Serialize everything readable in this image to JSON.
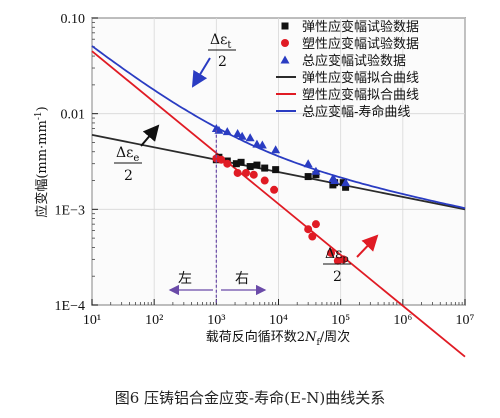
{
  "caption": "图6   压铸铝合金应变-寿命(E-N)曲线关系",
  "chart_data": {
    "type": "scatter",
    "xscale": "log",
    "yscale": "log",
    "xlim": [
      10,
      10000000
    ],
    "ylim": [
      0.0001,
      0.1
    ],
    "xlabel": "载荷反向循环数2Nf/周次",
    "ylabel": "应变幅(mm·mm⁻¹)",
    "x_tick_labels": [
      "10¹",
      "10²",
      "10³",
      "10⁴",
      "10⁵",
      "10⁶",
      "10⁷"
    ],
    "y_tick_labels": [
      "0.10",
      "0.01",
      "1E−3",
      "1E−4"
    ],
    "x_ticks": [
      10,
      100,
      1000,
      10000,
      100000,
      1000000,
      10000000
    ],
    "y_ticks": [
      0.1,
      0.01,
      0.001,
      0.0001
    ],
    "legend_position": "top-right",
    "series": [
      {
        "name": "弹性应变幅试验数据",
        "kind": "scatter",
        "marker": "square",
        "color": "#111111",
        "points": [
          [
            1000,
            0.0033
          ],
          [
            1100,
            0.0035
          ],
          [
            1500,
            0.0032
          ],
          [
            2100,
            0.003
          ],
          [
            2500,
            0.0031
          ],
          [
            3500,
            0.0028
          ],
          [
            4500,
            0.0029
          ],
          [
            6000,
            0.0027
          ],
          [
            9000,
            0.0026
          ],
          [
            30000,
            0.0022
          ],
          [
            40000,
            0.0023
          ],
          [
            75000,
            0.0018
          ],
          [
            80000,
            0.0019
          ],
          [
            110000,
            0.0019
          ],
          [
            120000,
            0.0017
          ]
        ]
      },
      {
        "name": "塑性应变幅试验数据",
        "kind": "scatter",
        "marker": "circle",
        "color": "#e01b24",
        "points": [
          [
            1000,
            0.0034
          ],
          [
            1200,
            0.0033
          ],
          [
            1500,
            0.003
          ],
          [
            2200,
            0.0024
          ],
          [
            3000,
            0.0024
          ],
          [
            4000,
            0.0023
          ],
          [
            6000,
            0.002
          ],
          [
            8500,
            0.0016
          ],
          [
            30000,
            0.00062
          ],
          [
            35000,
            0.00052
          ],
          [
            40000,
            0.0007
          ],
          [
            70000,
            0.00035
          ],
          [
            90000,
            0.00029
          ],
          [
            110000,
            0.0003
          ]
        ]
      },
      {
        "name": "总应变幅试验数据",
        "kind": "scatter",
        "marker": "triangle",
        "color": "#2a3cc2",
        "points": [
          [
            1000,
            0.007
          ],
          [
            1100,
            0.0067
          ],
          [
            1500,
            0.0065
          ],
          [
            2200,
            0.0062
          ],
          [
            2600,
            0.0058
          ],
          [
            3500,
            0.0056
          ],
          [
            4500,
            0.0048
          ],
          [
            5500,
            0.0047
          ],
          [
            9000,
            0.0042
          ],
          [
            30000,
            0.003
          ],
          [
            40000,
            0.0025
          ],
          [
            75000,
            0.0021
          ],
          [
            80000,
            0.002
          ],
          [
            120000,
            0.0019
          ]
        ]
      },
      {
        "name": "弹性应变幅拟合曲线",
        "kind": "line",
        "color": "#2b2b2b",
        "points": [
          [
            10,
            0.006
          ],
          [
            10000000,
            0.001
          ]
        ]
      },
      {
        "name": "塑性应变幅拟合曲线",
        "kind": "line",
        "color": "#e01b24",
        "points": [
          [
            10,
            0.045
          ],
          [
            10000000,
            2.88e-05
          ]
        ]
      },
      {
        "name": "总应变幅-寿命曲线",
        "kind": "curve",
        "color": "#2a3cc2",
        "components": [
          "弹性应变幅拟合曲线",
          "塑性应变幅拟合曲线"
        ]
      }
    ],
    "reference_line": {
      "x": 1000,
      "color": "#5a2aa0"
    },
    "annotations": {
      "delta_t": "Δε",
      "delta_t_sub": "t",
      "delta_e": "Δε",
      "delta_e_sub": "e",
      "delta_p": "Δε",
      "delta_p_sub": "p",
      "denominator": "2",
      "left": "左",
      "right": "右"
    }
  }
}
